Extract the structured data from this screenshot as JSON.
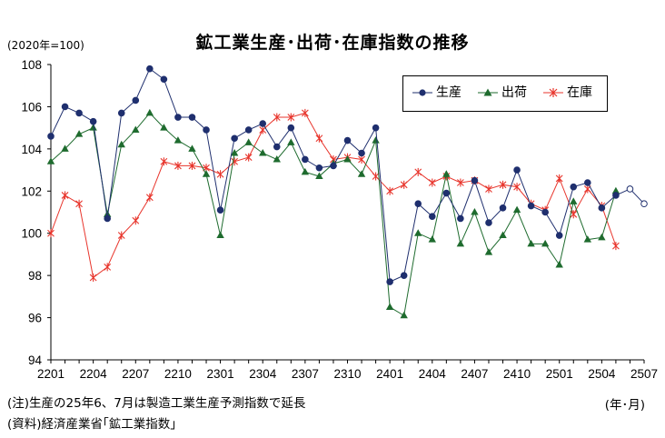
{
  "chart_data": {
    "type": "line",
    "title": "鉱工業生産･出荷･在庫指数の推移",
    "unit_label": "(2020年=100)",
    "x_unit_label": "(年･月)",
    "notes": [
      "(注)生産の25年6、7月は製造工業生産予測指数で延長",
      "(資料)経済産業省｢鉱工業指数｣"
    ],
    "x": [
      "2201",
      "2202",
      "2203",
      "2204",
      "2205",
      "2206",
      "2207",
      "2208",
      "2209",
      "2210",
      "2211",
      "2212",
      "2301",
      "2302",
      "2303",
      "2304",
      "2305",
      "2306",
      "2307",
      "2308",
      "2309",
      "2310",
      "2311",
      "2312",
      "2401",
      "2402",
      "2403",
      "2404",
      "2405",
      "2406",
      "2407",
      "2408",
      "2409",
      "2410",
      "2411",
      "2412",
      "2501",
      "2502",
      "2503",
      "2504",
      "2505",
      "2506",
      "2507"
    ],
    "x_tick_labels": [
      "2201",
      "2204",
      "2207",
      "2210",
      "2301",
      "2304",
      "2307",
      "2310",
      "2401",
      "2404",
      "2407",
      "2410",
      "2501",
      "2504",
      "2507"
    ],
    "ylim": [
      94,
      108
    ],
    "y_ticks": [
      94,
      96,
      98,
      100,
      102,
      104,
      106,
      108
    ],
    "grid": false,
    "legend_position": "top-right",
    "series": [
      {
        "name": "生産",
        "color": "#1f2f6e",
        "marker": "circle",
        "values": [
          104.6,
          106.0,
          105.7,
          105.3,
          100.7,
          105.7,
          106.3,
          107.8,
          107.3,
          105.5,
          105.5,
          104.9,
          101.1,
          104.5,
          104.9,
          105.2,
          104.1,
          105.0,
          103.5,
          103.1,
          103.2,
          104.4,
          103.8,
          105.0,
          97.7,
          98.0,
          101.4,
          100.8,
          101.9,
          100.7,
          102.5,
          100.5,
          101.2,
          103.0,
          101.3,
          101.0,
          99.9,
          102.2,
          102.4,
          101.2,
          101.8,
          null,
          null
        ],
        "forecast_values": [
          null,
          null,
          null,
          null,
          null,
          null,
          null,
          null,
          null,
          null,
          null,
          null,
          null,
          null,
          null,
          null,
          null,
          null,
          null,
          null,
          null,
          null,
          null,
          null,
          null,
          null,
          null,
          null,
          null,
          null,
          null,
          null,
          null,
          null,
          null,
          null,
          null,
          null,
          null,
          null,
          101.8,
          102.1,
          101.4
        ]
      },
      {
        "name": "出荷",
        "color": "#1e6b2e",
        "marker": "triangle",
        "values": [
          103.4,
          104.0,
          104.7,
          105.0,
          100.9,
          104.2,
          104.9,
          105.7,
          105.0,
          104.4,
          104.0,
          102.8,
          99.9,
          103.8,
          104.3,
          103.8,
          103.5,
          104.3,
          102.9,
          102.7,
          103.3,
          103.5,
          102.8,
          104.4,
          96.5,
          96.1,
          100.0,
          99.7,
          102.8,
          99.5,
          101.0,
          99.1,
          99.9,
          101.1,
          99.5,
          99.5,
          98.5,
          101.5,
          99.7,
          99.8,
          102.0,
          null,
          null
        ]
      },
      {
        "name": "在庫",
        "color": "#e8352c",
        "marker": "asterisk",
        "values": [
          100.0,
          101.8,
          101.4,
          97.9,
          98.4,
          99.9,
          100.6,
          101.7,
          103.4,
          103.2,
          103.2,
          103.1,
          102.8,
          103.4,
          103.6,
          104.9,
          105.5,
          105.5,
          105.7,
          104.5,
          103.5,
          103.6,
          103.5,
          102.7,
          102.0,
          102.3,
          102.9,
          102.4,
          102.7,
          102.4,
          102.5,
          102.1,
          102.3,
          102.2,
          101.4,
          101.1,
          102.6,
          100.9,
          102.1,
          101.3,
          99.4,
          null,
          null
        ]
      }
    ]
  }
}
